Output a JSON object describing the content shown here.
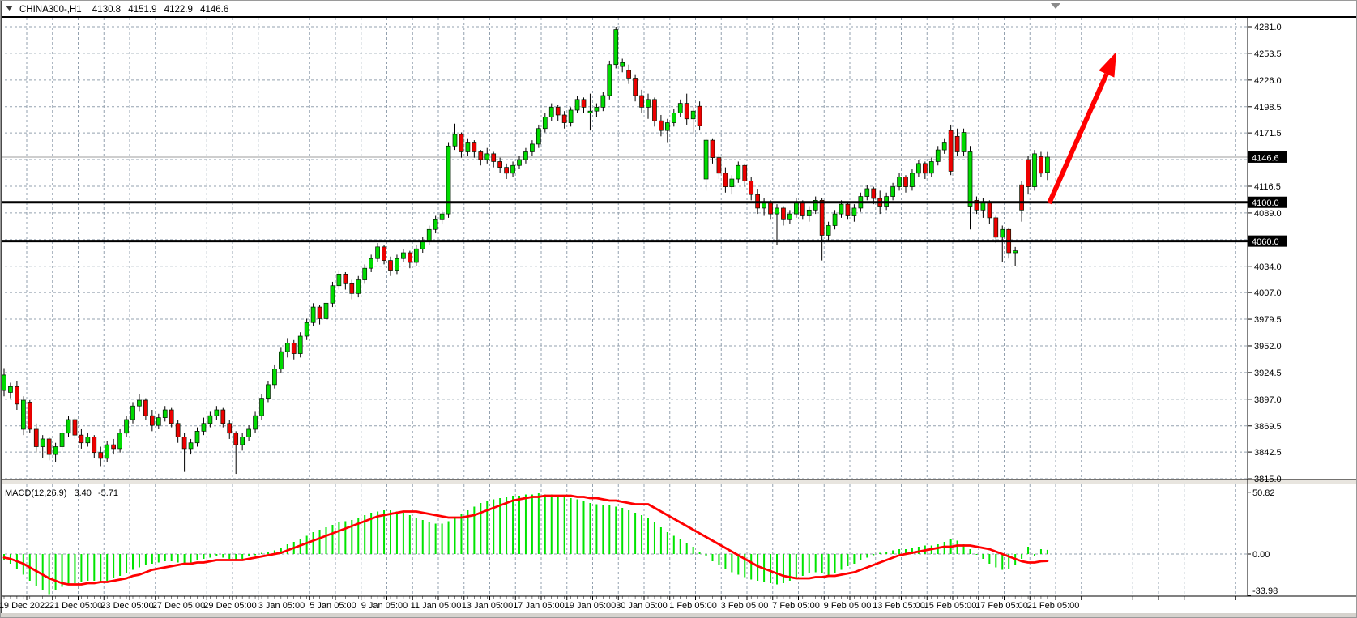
{
  "header": {
    "symbol_period": "CHINA300-,H1",
    "open": "4130.8",
    "high": "4151.9",
    "low": "4122.9",
    "close": "4146.6"
  },
  "price_axis": {
    "labels": [
      {
        "text": "4281.0",
        "price": 4281.0
      },
      {
        "text": "4253.5",
        "price": 4253.5
      },
      {
        "text": "4226.0",
        "price": 4226.0
      },
      {
        "text": "4198.5",
        "price": 4198.5
      },
      {
        "text": "4171.5",
        "price": 4171.5
      },
      {
        "text": "4116.5",
        "price": 4116.5
      },
      {
        "text": "4089.0",
        "price": 4089.0
      },
      {
        "text": "4034.0",
        "price": 4034.0
      },
      {
        "text": "4007.0",
        "price": 4007.0
      },
      {
        "text": "3979.5",
        "price": 3979.5
      },
      {
        "text": "3952.0",
        "price": 3952.0
      },
      {
        "text": "3924.5",
        "price": 3924.5
      },
      {
        "text": "3897.0",
        "price": 3897.0
      },
      {
        "text": "3869.5",
        "price": 3869.5
      },
      {
        "text": "3842.5",
        "price": 3842.5
      },
      {
        "text": "3815.0",
        "price": 3815.0
      }
    ],
    "grid_prices": [
      4281,
      4253.5,
      4226,
      4198.5,
      4171.5,
      4144,
      4116.5,
      4089,
      4061.5,
      4034,
      4007,
      3979.5,
      3952,
      3924.5,
      3897,
      3869.5,
      3842.5,
      3815
    ],
    "bid": {
      "text": "4146.6",
      "price": 4146.6
    },
    "hlines": [
      {
        "text": "4100.0",
        "price": 4100.0
      },
      {
        "text": "4060.0",
        "price": 4060.0
      }
    ]
  },
  "time_axis": {
    "labels": [
      "19 Dec 2022",
      "21 Dec 05:00",
      "23 Dec 05:00",
      "27 Dec 05:00",
      "29 Dec 05:00",
      "3 Jan 05:00",
      "5 Jan 05:00",
      "9 Jan 05:00",
      "11 Jan 05:00",
      "13 Jan 05:00",
      "17 Jan 05:00",
      "19 Jan 05:00",
      "30 Jan 05:00",
      "1 Feb 05:00",
      "3 Feb 05:00",
      "7 Feb 05:00",
      "9 Feb 05:00",
      "13 Feb 05:00",
      "15 Feb 05:00",
      "17 Feb 05:00",
      "21 Feb 05:00"
    ]
  },
  "macd_panel": {
    "label": "MACD(12,26,9)",
    "value_macd": "3.40",
    "value_signal": "-5.71",
    "axis_labels": [
      {
        "text": "50.82",
        "value": 50.82
      },
      {
        "text": "0.00",
        "value": 0
      },
      {
        "text": "-33.98",
        "value": -33.98
      }
    ]
  },
  "annotations": {
    "arrow": {
      "type": "arrow",
      "color": "#FF0000",
      "start": [
        1295,
        251
      ],
      "end": [
        1378,
        64
      ]
    }
  },
  "colors": {
    "up": "#00DB00",
    "down": "#ED0000",
    "wick": "#000000",
    "grid": "#93A1AF",
    "hist": "#00E400",
    "signal": "#FF0000",
    "hline": "#000000",
    "bid_line": "#9C9C9C",
    "label_box_bg": "#000000",
    "label_box_text": "#FFFFFF",
    "arrow": "#FF0000"
  },
  "chart_data": {
    "type": "candlestick",
    "symbol": "CHINA300",
    "timeframe": "H1",
    "title": "CHINA300-,H1",
    "ohlc_current": {
      "open": 4130.8,
      "high": 4151.9,
      "low": 4122.9,
      "close": 4146.6
    },
    "ylim": [
      3815,
      4281
    ],
    "grid": true,
    "candles": [
      [
        3906,
        3929,
        3900,
        3922
      ],
      [
        3904,
        3914,
        3898,
        3910
      ],
      [
        3910,
        3916,
        3886,
        3892
      ],
      [
        3866,
        3900,
        3860,
        3896
      ],
      [
        3894,
        3896,
        3862,
        3866
      ],
      [
        3866,
        3872,
        3842,
        3848
      ],
      [
        3848,
        3860,
        3836,
        3856
      ],
      [
        3856,
        3858,
        3834,
        3840
      ],
      [
        3840,
        3852,
        3832,
        3848
      ],
      [
        3848,
        3866,
        3844,
        3862
      ],
      [
        3862,
        3880,
        3858,
        3876
      ],
      [
        3876,
        3878,
        3856,
        3860
      ],
      [
        3860,
        3866,
        3846,
        3852
      ],
      [
        3852,
        3862,
        3848,
        3858
      ],
      [
        3858,
        3860,
        3836,
        3842
      ],
      [
        3842,
        3848,
        3828,
        3836
      ],
      [
        3836,
        3854,
        3832,
        3850
      ],
      [
        3850,
        3856,
        3840,
        3846
      ],
      [
        3846,
        3866,
        3842,
        3862
      ],
      [
        3862,
        3880,
        3858,
        3876
      ],
      [
        3876,
        3894,
        3872,
        3890
      ],
      [
        3890,
        3902,
        3884,
        3896
      ],
      [
        3896,
        3898,
        3876,
        3880
      ],
      [
        3880,
        3886,
        3864,
        3870
      ],
      [
        3870,
        3882,
        3866,
        3878
      ],
      [
        3878,
        3890,
        3874,
        3886
      ],
      [
        3886,
        3888,
        3868,
        3872
      ],
      [
        3872,
        3876,
        3852,
        3858
      ],
      [
        3858,
        3862,
        3822,
        3846
      ],
      [
        3846,
        3856,
        3840,
        3852
      ],
      [
        3852,
        3868,
        3848,
        3864
      ],
      [
        3864,
        3878,
        3860,
        3872
      ],
      [
        3872,
        3884,
        3868,
        3880
      ],
      [
        3880,
        3890,
        3876,
        3886
      ],
      [
        3886,
        3888,
        3868,
        3872
      ],
      [
        3872,
        3876,
        3856,
        3862
      ],
      [
        3862,
        3864,
        3820,
        3850
      ],
      [
        3850,
        3862,
        3844,
        3858
      ],
      [
        3858,
        3870,
        3854,
        3866
      ],
      [
        3866,
        3884,
        3862,
        3880
      ],
      [
        3880,
        3902,
        3876,
        3898
      ],
      [
        3898,
        3916,
        3894,
        3912
      ],
      [
        3912,
        3932,
        3908,
        3928
      ],
      [
        3928,
        3950,
        3924,
        3946
      ],
      [
        3946,
        3960,
        3940,
        3955
      ],
      [
        3955,
        3958,
        3938,
        3944
      ],
      [
        3944,
        3966,
        3940,
        3962
      ],
      [
        3962,
        3980,
        3958,
        3976
      ],
      [
        3976,
        3996,
        3972,
        3992
      ],
      [
        3992,
        3994,
        3974,
        3980
      ],
      [
        3980,
        4000,
        3976,
        3996
      ],
      [
        3996,
        4018,
        3992,
        4014
      ],
      [
        4014,
        4030,
        4010,
        4026
      ],
      [
        4026,
        4028,
        4010,
        4016
      ],
      [
        4016,
        4020,
        4000,
        4006
      ],
      [
        4006,
        4024,
        4002,
        4020
      ],
      [
        4020,
        4036,
        4016,
        4032
      ],
      [
        4032,
        4046,
        4028,
        4042
      ],
      [
        4042,
        4058,
        4038,
        4054
      ],
      [
        4054,
        4056,
        4036,
        4040
      ],
      [
        4040,
        4044,
        4024,
        4030
      ],
      [
        4030,
        4046,
        4026,
        4042
      ],
      [
        4042,
        4052,
        4038,
        4048
      ],
      [
        4048,
        4050,
        4032,
        4038
      ],
      [
        4038,
        4056,
        4034,
        4052
      ],
      [
        4052,
        4064,
        4048,
        4060
      ],
      [
        4060,
        4076,
        4056,
        4072
      ],
      [
        4072,
        4086,
        4068,
        4082
      ],
      [
        4082,
        4092,
        4078,
        4088
      ],
      [
        4088,
        4162,
        4084,
        4158
      ],
      [
        4158,
        4181,
        4154,
        4170
      ],
      [
        4170,
        4172,
        4146,
        4152
      ],
      [
        4152,
        4166,
        4148,
        4162
      ],
      [
        4162,
        4164,
        4146,
        4152
      ],
      [
        4152,
        4154,
        4138,
        4144
      ],
      [
        4144,
        4156,
        4140,
        4150
      ],
      [
        4150,
        4152,
        4136,
        4142
      ],
      [
        4142,
        4146,
        4130,
        4136
      ],
      [
        4136,
        4140,
        4124,
        4130
      ],
      [
        4130,
        4142,
        4126,
        4138
      ],
      [
        4138,
        4148,
        4134,
        4144
      ],
      [
        4144,
        4156,
        4140,
        4152
      ],
      [
        4152,
        4164,
        4148,
        4160
      ],
      [
        4160,
        4180,
        4156,
        4176
      ],
      [
        4176,
        4192,
        4172,
        4188
      ],
      [
        4188,
        4202,
        4184,
        4198
      ],
      [
        4198,
        4200,
        4184,
        4190
      ],
      [
        4190,
        4194,
        4176,
        4182
      ],
      [
        4182,
        4198,
        4178,
        4195
      ],
      [
        4195,
        4210,
        4192,
        4206
      ],
      [
        4206,
        4208,
        4192,
        4198
      ],
      [
        4192,
        4212,
        4174,
        4194
      ],
      [
        4194,
        4202,
        4188,
        4198
      ],
      [
        4198,
        4214,
        4194,
        4210
      ],
      [
        4210,
        4246,
        4206,
        4242
      ],
      [
        4242,
        4281,
        4238,
        4278
      ],
      [
        4240,
        4248,
        4234,
        4244
      ],
      [
        4236,
        4242,
        4222,
        4228
      ],
      [
        4228,
        4232,
        4204,
        4210
      ],
      [
        4210,
        4216,
        4192,
        4198
      ],
      [
        4198,
        4212,
        4186,
        4206
      ],
      [
        4206,
        4208,
        4178,
        4184
      ],
      [
        4184,
        4190,
        4168,
        4174
      ],
      [
        4174,
        4186,
        4162,
        4182
      ],
      [
        4182,
        4196,
        4178,
        4192
      ],
      [
        4192,
        4206,
        4188,
        4202
      ],
      [
        4202,
        4212,
        4180,
        4186
      ],
      [
        4186,
        4198,
        4170,
        4194
      ],
      [
        4199,
        4204,
        4174,
        4179
      ],
      [
        4124,
        4166,
        4112,
        4164
      ],
      [
        4164,
        4166,
        4140,
        4146
      ],
      [
        4146,
        4150,
        4124,
        4130
      ],
      [
        4130,
        4136,
        4110,
        4116
      ],
      [
        4116,
        4128,
        4108,
        4124
      ],
      [
        4124,
        4142,
        4120,
        4138
      ],
      [
        4138,
        4140,
        4116,
        4122
      ],
      [
        4122,
        4126,
        4102,
        4108
      ],
      [
        4108,
        4114,
        4088,
        4094
      ],
      [
        4094,
        4104,
        4086,
        4100
      ],
      [
        4100,
        4102,
        4082,
        4088
      ],
      [
        4088,
        4098,
        4056,
        4094
      ],
      [
        4094,
        4096,
        4076,
        4082
      ],
      [
        4082,
        4092,
        4078,
        4088
      ],
      [
        4088,
        4104,
        4084,
        4100
      ],
      [
        4100,
        4102,
        4082,
        4086
      ],
      [
        4086,
        4096,
        4080,
        4092
      ],
      [
        4092,
        4106,
        4088,
        4102
      ],
      [
        4102,
        4104,
        4040,
        4066
      ],
      [
        4066,
        4080,
        4060,
        4076
      ],
      [
        4076,
        4092,
        4072,
        4088
      ],
      [
        4088,
        4102,
        4084,
        4098
      ],
      [
        4098,
        4100,
        4082,
        4086
      ],
      [
        4086,
        4098,
        4080,
        4094
      ],
      [
        4094,
        4110,
        4090,
        4106
      ],
      [
        4106,
        4118,
        4102,
        4114
      ],
      [
        4114,
        4116,
        4098,
        4104
      ],
      [
        4104,
        4112,
        4088,
        4096
      ],
      [
        4096,
        4110,
        4092,
        4106
      ],
      [
        4106,
        4120,
        4102,
        4116
      ],
      [
        4116,
        4130,
        4112,
        4126
      ],
      [
        4126,
        4128,
        4110,
        4116
      ],
      [
        4116,
        4134,
        4112,
        4130
      ],
      [
        4130,
        4144,
        4126,
        4140
      ],
      [
        4140,
        4142,
        4124,
        4130
      ],
      [
        4130,
        4146,
        4126,
        4142
      ],
      [
        4142,
        4158,
        4138,
        4154
      ],
      [
        4154,
        4166,
        4150,
        4162
      ],
      [
        4174,
        4180,
        4128,
        4132
      ],
      [
        4168,
        4176,
        4148,
        4152
      ],
      [
        4152,
        4176,
        4148,
        4172
      ],
      [
        4096,
        4158,
        4072,
        4152
      ],
      [
        4102,
        4106,
        4088,
        4092
      ],
      [
        4092,
        4104,
        4084,
        4100
      ],
      [
        4100,
        4102,
        4078,
        4084
      ],
      [
        4084,
        4086,
        4058,
        4064
      ],
      [
        4064,
        4076,
        4038,
        4072
      ],
      [
        4072,
        4074,
        4042,
        4048
      ],
      [
        4048,
        4054,
        4034,
        4050
      ],
      [
        4118,
        4122,
        4080,
        4092
      ],
      [
        4144,
        4148,
        4108,
        4116
      ],
      [
        4116,
        4154,
        4112,
        4150
      ],
      [
        4147,
        4152,
        4126,
        4130
      ],
      [
        4130.8,
        4151.9,
        4122.9,
        4146.6
      ]
    ],
    "macd": {
      "params": "12,26,9",
      "ylim": [
        -33.98,
        50.82
      ],
      "histogram": [
        -5,
        -8,
        -12,
        -17,
        -22,
        -26,
        -30,
        -33,
        -30,
        -27,
        -25,
        -24,
        -23,
        -22,
        -22,
        -23,
        -22,
        -20,
        -18,
        -16,
        -13,
        -11,
        -9,
        -8,
        -7,
        -6,
        -6,
        -7,
        -8,
        -7,
        -5,
        -4,
        -3,
        -2,
        -3,
        -4,
        -5,
        -4,
        -2,
        -1,
        1,
        2,
        3,
        5,
        8,
        10,
        12,
        15,
        18,
        20,
        22,
        24,
        26,
        27,
        28,
        30,
        32,
        34,
        35,
        36,
        36,
        35,
        34,
        32,
        30,
        28,
        26,
        25,
        25,
        27,
        30,
        33,
        36,
        39,
        42,
        44,
        45,
        46,
        47,
        48,
        48,
        49,
        49,
        50,
        49,
        49,
        48,
        47,
        46,
        45,
        44,
        42,
        41,
        40,
        40,
        39,
        38,
        36,
        34,
        32,
        30,
        26,
        22,
        18,
        15,
        12,
        9,
        6,
        2,
        -2,
        -6,
        -9,
        -12,
        -15,
        -17,
        -19,
        -21,
        -22,
        -23,
        -24,
        -25,
        -24,
        -22,
        -20,
        -18,
        -16,
        -15,
        -16,
        -18,
        -16,
        -13,
        -10,
        -8,
        -5,
        -3,
        -1,
        1,
        2,
        3,
        4,
        4,
        5,
        6,
        7,
        7,
        8,
        10,
        12,
        11,
        8,
        4,
        0,
        -4,
        -8,
        -11,
        -13,
        -12,
        -9,
        -4,
        6,
        -2,
        4,
        3.4
      ],
      "signal": [
        -3,
        -4,
        -6,
        -8,
        -11,
        -14,
        -17,
        -20,
        -22,
        -24,
        -25,
        -25,
        -25,
        -24,
        -24,
        -23,
        -23,
        -22,
        -21,
        -20,
        -18,
        -17,
        -15,
        -13,
        -12,
        -11,
        -10,
        -9,
        -8,
        -8,
        -7,
        -7,
        -6,
        -5,
        -5,
        -5,
        -5,
        -5,
        -4,
        -3,
        -2,
        -1,
        0,
        1,
        3,
        5,
        7,
        9,
        11,
        13,
        15,
        17,
        19,
        21,
        23,
        25,
        27,
        29,
        31,
        32,
        33,
        34,
        35,
        35,
        35,
        34,
        33,
        32,
        31,
        30,
        30,
        30,
        31,
        32,
        34,
        36,
        38,
        40,
        42,
        44,
        45,
        46,
        47,
        47,
        48,
        48,
        48,
        48,
        48,
        47,
        47,
        46,
        46,
        45,
        44,
        44,
        43,
        42,
        41,
        41,
        41,
        38,
        35,
        32,
        29,
        26,
        23,
        20,
        17,
        14,
        11,
        8,
        5,
        2,
        -1,
        -4,
        -7,
        -10,
        -12,
        -14,
        -16,
        -18,
        -19,
        -20,
        -20,
        -20,
        -19,
        -19,
        -18,
        -18,
        -17,
        -16,
        -15,
        -13,
        -11,
        -9,
        -7,
        -5,
        -3,
        -1,
        0,
        1,
        2,
        3,
        4,
        5,
        6,
        6,
        7,
        7,
        7,
        6,
        5,
        4,
        2,
        0,
        -2,
        -4,
        -6,
        -7,
        -7,
        -6,
        -5.71
      ]
    }
  }
}
